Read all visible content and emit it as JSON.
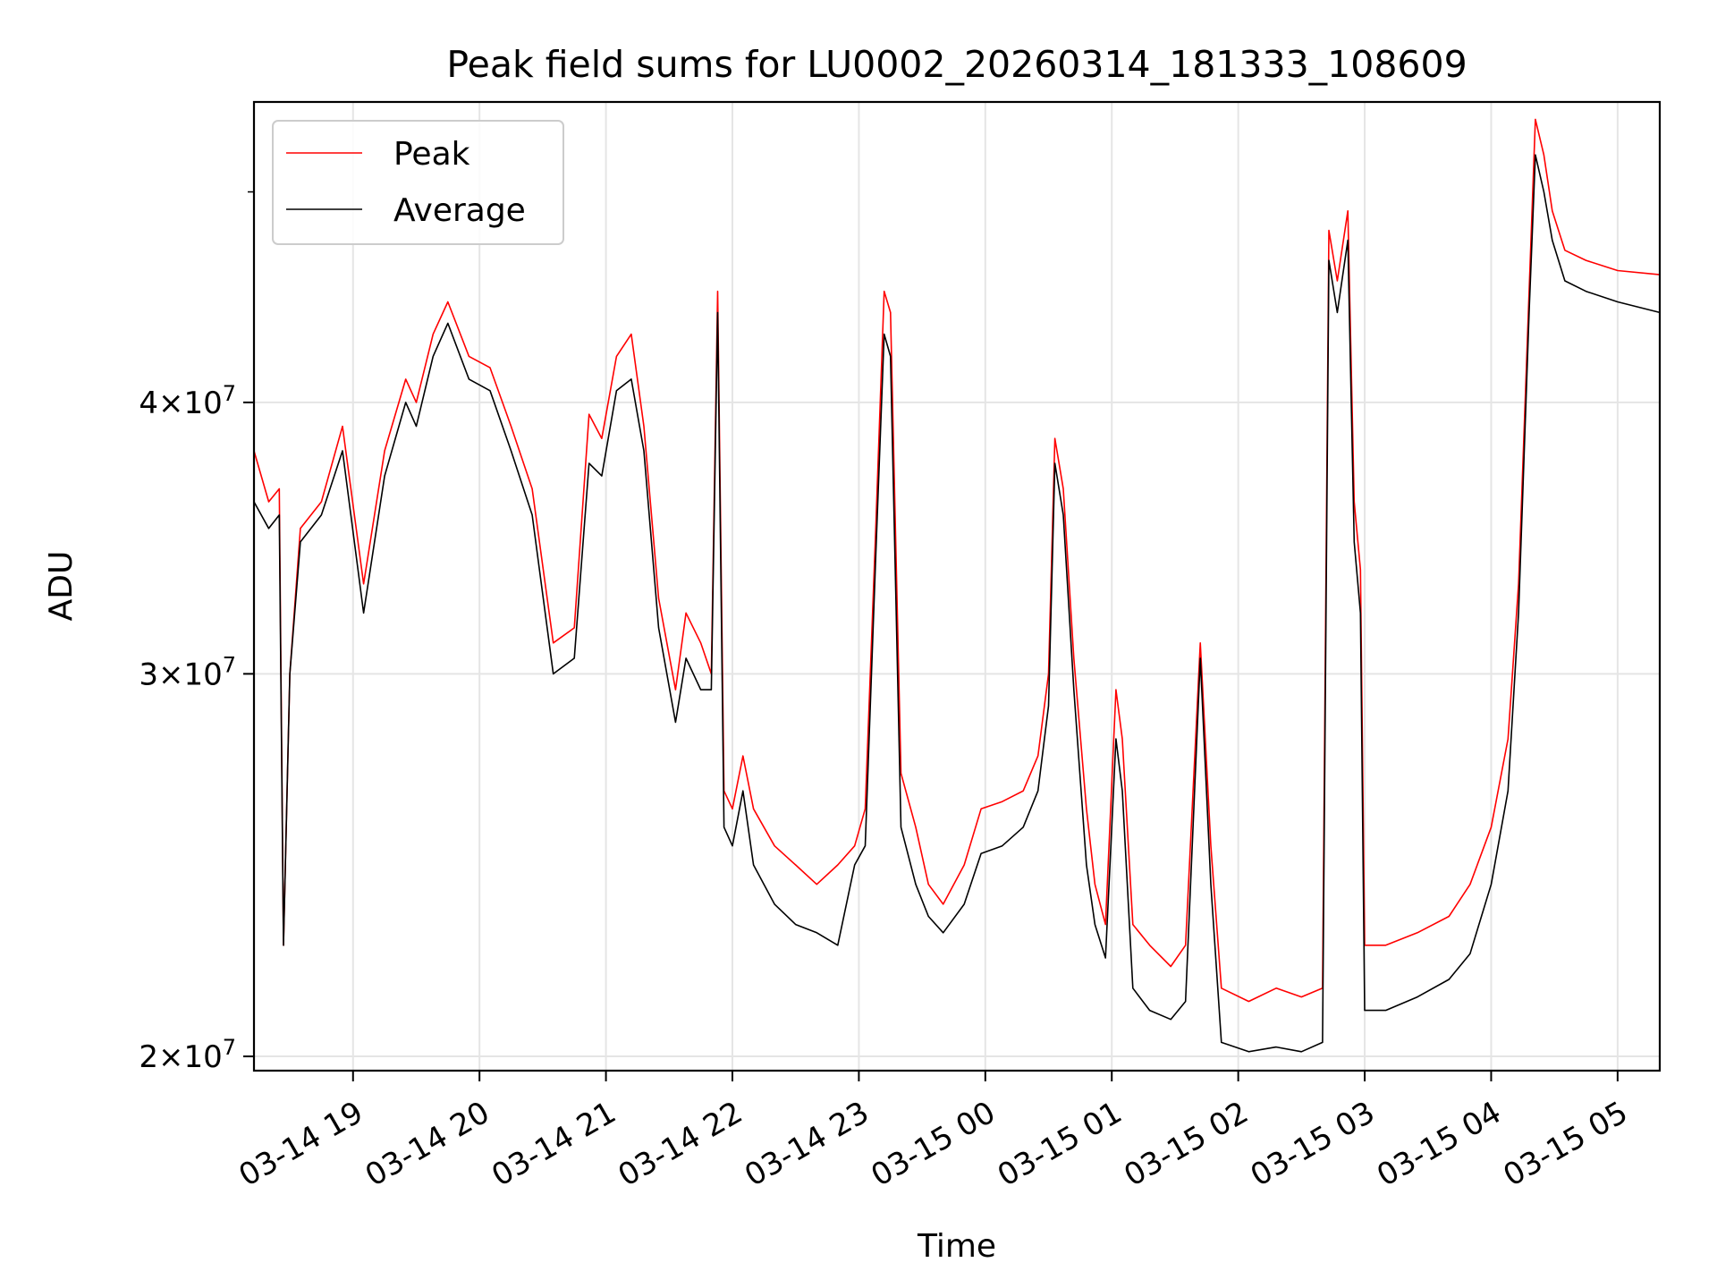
{
  "chart_data": {
    "type": "line",
    "title": "Peak field sums for LU0002_20260314_181333_108609",
    "xlabel": "Time",
    "ylabel": "ADU",
    "yscale": "log",
    "ylim": [
      19700000,
      55000000
    ],
    "xlim": [
      "2026-03-14 18:13",
      "2026-03-15 05:20"
    ],
    "grid": true,
    "legend_position": "top-left",
    "x_ticks": [
      "03-14 19",
      "03-14 20",
      "03-14 21",
      "03-14 22",
      "03-14 23",
      "03-15 00",
      "03-15 01",
      "03-15 02",
      "03-15 03",
      "03-15 04",
      "03-15 05"
    ],
    "y_ticks": [
      {
        "value": 20000000,
        "mantissa": "2",
        "exponent": "7"
      },
      {
        "value": 30000000,
        "mantissa": "3",
        "exponent": "7"
      },
      {
        "value": 40000000,
        "mantissa": "4",
        "exponent": "7"
      }
    ],
    "series": [
      {
        "name": "Peak",
        "color": "#ff0000",
        "points": [
          [
            "2026-03-14 18:13",
            38000000
          ],
          [
            "2026-03-14 18:20",
            36000000
          ],
          [
            "2026-03-14 18:25",
            36500000
          ],
          [
            "2026-03-14 18:27",
            22500000
          ],
          [
            "2026-03-14 18:30",
            30000000
          ],
          [
            "2026-03-14 18:35",
            35000000
          ],
          [
            "2026-03-14 18:45",
            36000000
          ],
          [
            "2026-03-14 18:55",
            39000000
          ],
          [
            "2026-03-14 19:05",
            33000000
          ],
          [
            "2026-03-14 19:15",
            38000000
          ],
          [
            "2026-03-14 19:25",
            41000000
          ],
          [
            "2026-03-14 19:30",
            40000000
          ],
          [
            "2026-03-14 19:38",
            43000000
          ],
          [
            "2026-03-14 19:45",
            44500000
          ],
          [
            "2026-03-14 19:55",
            42000000
          ],
          [
            "2026-03-14 20:05",
            41500000
          ],
          [
            "2026-03-14 20:15",
            39000000
          ],
          [
            "2026-03-14 20:25",
            36500000
          ],
          [
            "2026-03-14 20:35",
            31000000
          ],
          [
            "2026-03-14 20:45",
            31500000
          ],
          [
            "2026-03-14 20:52",
            39500000
          ],
          [
            "2026-03-14 20:58",
            38500000
          ],
          [
            "2026-03-14 21:05",
            42000000
          ],
          [
            "2026-03-14 21:12",
            43000000
          ],
          [
            "2026-03-14 21:18",
            39000000
          ],
          [
            "2026-03-14 21:25",
            32500000
          ],
          [
            "2026-03-14 21:33",
            29500000
          ],
          [
            "2026-03-14 21:38",
            32000000
          ],
          [
            "2026-03-14 21:45",
            31000000
          ],
          [
            "2026-03-14 21:50",
            30000000
          ],
          [
            "2026-03-14 21:53",
            45000000
          ],
          [
            "2026-03-14 21:56",
            26500000
          ],
          [
            "2026-03-14 22:00",
            26000000
          ],
          [
            "2026-03-14 22:05",
            27500000
          ],
          [
            "2026-03-14 22:10",
            26000000
          ],
          [
            "2026-03-14 22:20",
            25000000
          ],
          [
            "2026-03-14 22:30",
            24500000
          ],
          [
            "2026-03-14 22:40",
            24000000
          ],
          [
            "2026-03-14 22:50",
            24500000
          ],
          [
            "2026-03-14 22:58",
            25000000
          ],
          [
            "2026-03-14 23:03",
            26000000
          ],
          [
            "2026-03-14 23:08",
            35000000
          ],
          [
            "2026-03-14 23:12",
            45000000
          ],
          [
            "2026-03-14 23:15",
            44000000
          ],
          [
            "2026-03-14 23:20",
            27000000
          ],
          [
            "2026-03-14 23:27",
            25500000
          ],
          [
            "2026-03-14 23:33",
            24000000
          ],
          [
            "2026-03-14 23:40",
            23500000
          ],
          [
            "2026-03-14 23:50",
            24500000
          ],
          [
            "2026-03-14 23:58",
            26000000
          ],
          [
            "2026-03-15 00:08",
            26200000
          ],
          [
            "2026-03-15 00:18",
            26500000
          ],
          [
            "2026-03-15 00:25",
            27500000
          ],
          [
            "2026-03-15 00:30",
            30000000
          ],
          [
            "2026-03-15 00:33",
            38500000
          ],
          [
            "2026-03-15 00:37",
            36500000
          ],
          [
            "2026-03-15 00:42",
            30500000
          ],
          [
            "2026-03-15 00:48",
            26000000
          ],
          [
            "2026-03-15 00:52",
            24000000
          ],
          [
            "2026-03-15 00:57",
            23000000
          ],
          [
            "2026-03-15 01:02",
            29500000
          ],
          [
            "2026-03-15 01:05",
            28000000
          ],
          [
            "2026-03-15 01:10",
            23000000
          ],
          [
            "2026-03-15 01:18",
            22500000
          ],
          [
            "2026-03-15 01:28",
            22000000
          ],
          [
            "2026-03-15 01:35",
            22500000
          ],
          [
            "2026-03-15 01:42",
            31000000
          ],
          [
            "2026-03-15 01:47",
            25000000
          ],
          [
            "2026-03-15 01:52",
            21500000
          ],
          [
            "2026-03-15 02:05",
            21200000
          ],
          [
            "2026-03-15 02:18",
            21500000
          ],
          [
            "2026-03-15 02:30",
            21300000
          ],
          [
            "2026-03-15 02:40",
            21500000
          ],
          [
            "2026-03-15 02:43",
            48000000
          ],
          [
            "2026-03-15 02:47",
            45500000
          ],
          [
            "2026-03-15 02:52",
            49000000
          ],
          [
            "2026-03-15 02:55",
            36000000
          ],
          [
            "2026-03-15 02:58",
            33500000
          ],
          [
            "2026-03-15 03:00",
            22500000
          ],
          [
            "2026-03-15 03:10",
            22500000
          ],
          [
            "2026-03-15 03:25",
            22800000
          ],
          [
            "2026-03-15 03:40",
            23200000
          ],
          [
            "2026-03-15 03:50",
            24000000
          ],
          [
            "2026-03-15 04:00",
            25500000
          ],
          [
            "2026-03-15 04:08",
            28000000
          ],
          [
            "2026-03-15 04:13",
            33000000
          ],
          [
            "2026-03-15 04:18",
            45000000
          ],
          [
            "2026-03-15 04:21",
            54000000
          ],
          [
            "2026-03-15 04:25",
            52000000
          ],
          [
            "2026-03-15 04:29",
            49000000
          ],
          [
            "2026-03-15 04:35",
            47000000
          ],
          [
            "2026-03-15 04:45",
            46500000
          ],
          [
            "2026-03-15 05:00",
            46000000
          ],
          [
            "2026-03-15 05:20",
            45800000
          ]
        ]
      },
      {
        "name": "Average",
        "color": "#000000",
        "points": [
          [
            "2026-03-14 18:13",
            36000000
          ],
          [
            "2026-03-14 18:20",
            35000000
          ],
          [
            "2026-03-14 18:25",
            35500000
          ],
          [
            "2026-03-14 18:27",
            22500000
          ],
          [
            "2026-03-14 18:30",
            30000000
          ],
          [
            "2026-03-14 18:35",
            34500000
          ],
          [
            "2026-03-14 18:45",
            35500000
          ],
          [
            "2026-03-14 18:55",
            38000000
          ],
          [
            "2026-03-14 19:05",
            32000000
          ],
          [
            "2026-03-14 19:15",
            37000000
          ],
          [
            "2026-03-14 19:25",
            40000000
          ],
          [
            "2026-03-14 19:30",
            39000000
          ],
          [
            "2026-03-14 19:38",
            42000000
          ],
          [
            "2026-03-14 19:45",
            43500000
          ],
          [
            "2026-03-14 19:55",
            41000000
          ],
          [
            "2026-03-14 20:05",
            40500000
          ],
          [
            "2026-03-14 20:15",
            38000000
          ],
          [
            "2026-03-14 20:25",
            35500000
          ],
          [
            "2026-03-14 20:35",
            30000000
          ],
          [
            "2026-03-14 20:45",
            30500000
          ],
          [
            "2026-03-14 20:52",
            37500000
          ],
          [
            "2026-03-14 20:58",
            37000000
          ],
          [
            "2026-03-14 21:05",
            40500000
          ],
          [
            "2026-03-14 21:12",
            41000000
          ],
          [
            "2026-03-14 21:18",
            38000000
          ],
          [
            "2026-03-14 21:25",
            31500000
          ],
          [
            "2026-03-14 21:33",
            28500000
          ],
          [
            "2026-03-14 21:38",
            30500000
          ],
          [
            "2026-03-14 21:45",
            29500000
          ],
          [
            "2026-03-14 21:50",
            29500000
          ],
          [
            "2026-03-14 21:53",
            44000000
          ],
          [
            "2026-03-14 21:56",
            25500000
          ],
          [
            "2026-03-14 22:00",
            25000000
          ],
          [
            "2026-03-14 22:05",
            26500000
          ],
          [
            "2026-03-14 22:10",
            24500000
          ],
          [
            "2026-03-14 22:20",
            23500000
          ],
          [
            "2026-03-14 22:30",
            23000000
          ],
          [
            "2026-03-14 22:40",
            22800000
          ],
          [
            "2026-03-14 22:50",
            22500000
          ],
          [
            "2026-03-14 22:58",
            24500000
          ],
          [
            "2026-03-14 23:03",
            25000000
          ],
          [
            "2026-03-14 23:08",
            34000000
          ],
          [
            "2026-03-14 23:12",
            43000000
          ],
          [
            "2026-03-14 23:15",
            42000000
          ],
          [
            "2026-03-14 23:20",
            25500000
          ],
          [
            "2026-03-14 23:27",
            24000000
          ],
          [
            "2026-03-14 23:33",
            23200000
          ],
          [
            "2026-03-14 23:40",
            22800000
          ],
          [
            "2026-03-14 23:50",
            23500000
          ],
          [
            "2026-03-14 23:58",
            24800000
          ],
          [
            "2026-03-15 00:08",
            25000000
          ],
          [
            "2026-03-15 00:18",
            25500000
          ],
          [
            "2026-03-15 00:25",
            26500000
          ],
          [
            "2026-03-15 00:30",
            29000000
          ],
          [
            "2026-03-15 00:33",
            37500000
          ],
          [
            "2026-03-15 00:37",
            35500000
          ],
          [
            "2026-03-15 00:42",
            29500000
          ],
          [
            "2026-03-15 00:48",
            24500000
          ],
          [
            "2026-03-15 00:52",
            23000000
          ],
          [
            "2026-03-15 00:57",
            22200000
          ],
          [
            "2026-03-15 01:02",
            28000000
          ],
          [
            "2026-03-15 01:05",
            26500000
          ],
          [
            "2026-03-15 01:10",
            21500000
          ],
          [
            "2026-03-15 01:18",
            21000000
          ],
          [
            "2026-03-15 01:28",
            20800000
          ],
          [
            "2026-03-15 01:35",
            21200000
          ],
          [
            "2026-03-15 01:42",
            30500000
          ],
          [
            "2026-03-15 01:47",
            24000000
          ],
          [
            "2026-03-15 01:52",
            20300000
          ],
          [
            "2026-03-15 02:05",
            20100000
          ],
          [
            "2026-03-15 02:18",
            20200000
          ],
          [
            "2026-03-15 02:30",
            20100000
          ],
          [
            "2026-03-15 02:40",
            20300000
          ],
          [
            "2026-03-15 02:43",
            46500000
          ],
          [
            "2026-03-15 02:47",
            44000000
          ],
          [
            "2026-03-15 02:52",
            47500000
          ],
          [
            "2026-03-15 02:55",
            34500000
          ],
          [
            "2026-03-15 02:58",
            32000000
          ],
          [
            "2026-03-15 03:00",
            21000000
          ],
          [
            "2026-03-15 03:10",
            21000000
          ],
          [
            "2026-03-15 03:25",
            21300000
          ],
          [
            "2026-03-15 03:40",
            21700000
          ],
          [
            "2026-03-15 03:50",
            22300000
          ],
          [
            "2026-03-15 04:00",
            24000000
          ],
          [
            "2026-03-15 04:08",
            26500000
          ],
          [
            "2026-03-15 04:13",
            32000000
          ],
          [
            "2026-03-15 04:18",
            44000000
          ],
          [
            "2026-03-15 04:21",
            52000000
          ],
          [
            "2026-03-15 04:25",
            50000000
          ],
          [
            "2026-03-15 04:29",
            47500000
          ],
          [
            "2026-03-15 04:35",
            45500000
          ],
          [
            "2026-03-15 04:45",
            45000000
          ],
          [
            "2026-03-15 05:00",
            44500000
          ],
          [
            "2026-03-15 05:20",
            44000000
          ]
        ]
      }
    ]
  }
}
